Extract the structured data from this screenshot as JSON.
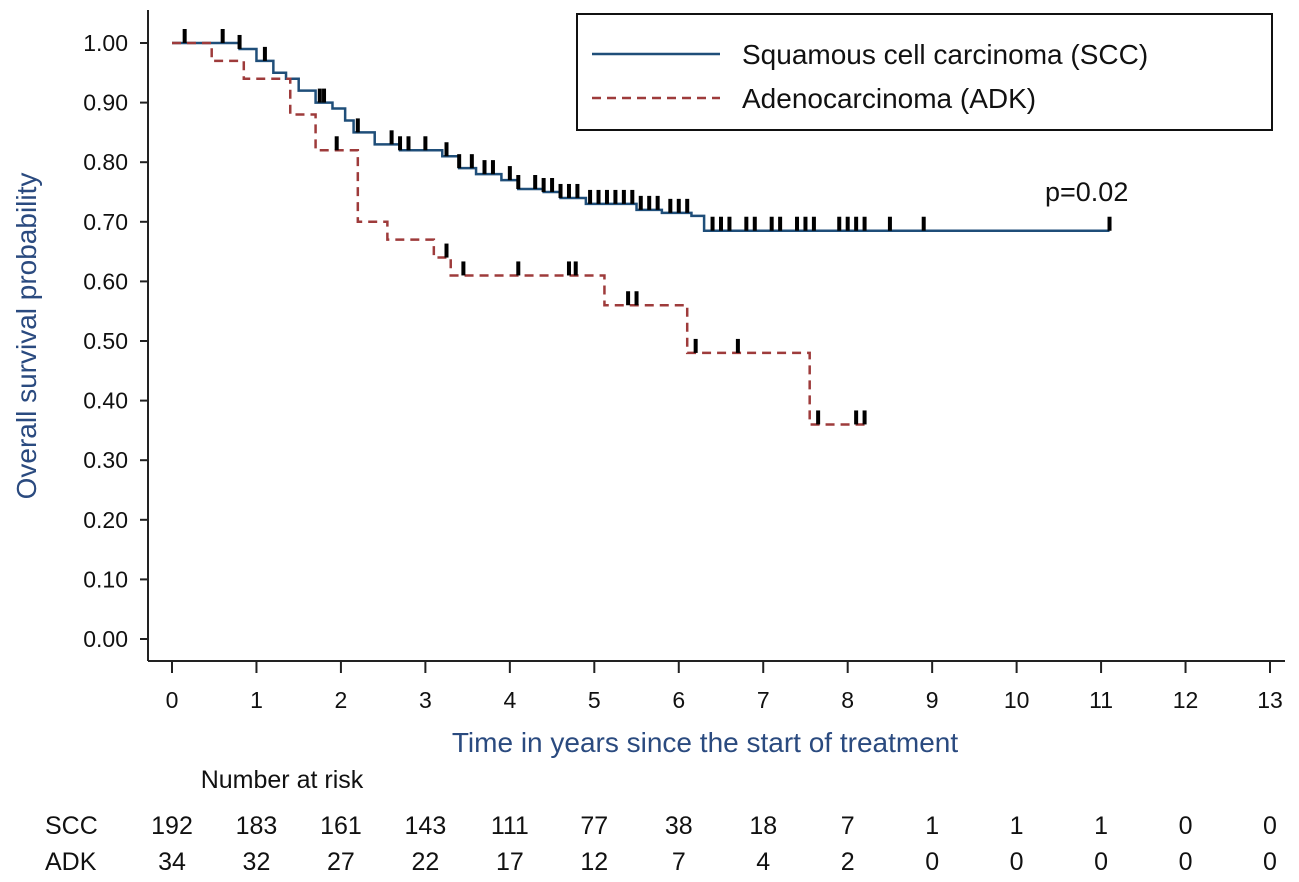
{
  "chart_data": {
    "type": "line",
    "subtype": "kaplan-meier",
    "xlabel": "Time in years since the start of treatment",
    "ylabel": "Overall survival probability",
    "xlim": [
      0,
      13
    ],
    "ylim": [
      0,
      1
    ],
    "x_ticks": [
      "0",
      "1",
      "2",
      "3",
      "4",
      "5",
      "6",
      "7",
      "8",
      "9",
      "10",
      "11",
      "12",
      "13"
    ],
    "y_ticks": [
      "0.00",
      "0.10",
      "0.20",
      "0.30",
      "0.40",
      "0.50",
      "0.60",
      "0.70",
      "0.80",
      "0.90",
      "1.00"
    ],
    "grid": false,
    "legend_position": "top-right",
    "annotation": "p=0.02",
    "colors": {
      "SCC": "#1f4e79",
      "ADK": "#9e3b3b"
    },
    "series": [
      {
        "name": "Squamous cell carcinoma (SCC)",
        "style": "solid",
        "steps": [
          [
            0,
            1.0
          ],
          [
            0.8,
            0.99
          ],
          [
            1.0,
            0.97
          ],
          [
            1.2,
            0.95
          ],
          [
            1.35,
            0.94
          ],
          [
            1.5,
            0.92
          ],
          [
            1.7,
            0.9
          ],
          [
            1.9,
            0.89
          ],
          [
            2.05,
            0.87
          ],
          [
            2.15,
            0.85
          ],
          [
            2.4,
            0.83
          ],
          [
            2.7,
            0.82
          ],
          [
            3.0,
            0.82
          ],
          [
            3.2,
            0.81
          ],
          [
            3.4,
            0.79
          ],
          [
            3.6,
            0.78
          ],
          [
            3.9,
            0.77
          ],
          [
            4.1,
            0.755
          ],
          [
            4.4,
            0.75
          ],
          [
            4.6,
            0.74
          ],
          [
            4.9,
            0.73
          ],
          [
            5.3,
            0.73
          ],
          [
            5.5,
            0.72
          ],
          [
            5.8,
            0.715
          ],
          [
            6.15,
            0.71
          ],
          [
            6.3,
            0.685
          ],
          [
            11.1,
            0.685
          ]
        ],
        "censored": [
          0.15,
          0.6,
          0.8,
          1.1,
          1.75,
          1.8,
          2.2,
          2.6,
          2.7,
          2.8,
          3.0,
          3.25,
          3.4,
          3.55,
          3.7,
          3.8,
          4.0,
          4.1,
          4.3,
          4.4,
          4.5,
          4.6,
          4.7,
          4.8,
          4.95,
          5.05,
          5.15,
          5.25,
          5.35,
          5.45,
          5.55,
          5.65,
          5.75,
          5.9,
          6.0,
          6.1,
          6.4,
          6.5,
          6.6,
          6.8,
          6.9,
          7.1,
          7.2,
          7.4,
          7.5,
          7.6,
          7.9,
          8.0,
          8.1,
          8.2,
          8.5,
          8.9,
          11.1
        ]
      },
      {
        "name": "Adenocarcinoma (ADK)",
        "style": "dashed",
        "steps": [
          [
            0,
            1.0
          ],
          [
            0.47,
            0.97
          ],
          [
            0.85,
            0.94
          ],
          [
            1.4,
            0.88
          ],
          [
            1.7,
            0.82
          ],
          [
            2.2,
            0.7
          ],
          [
            2.55,
            0.67
          ],
          [
            3.1,
            0.64
          ],
          [
            3.3,
            0.61
          ],
          [
            5.12,
            0.56
          ],
          [
            6.1,
            0.48
          ],
          [
            7.55,
            0.36
          ],
          [
            8.2,
            0.36
          ]
        ],
        "censored": [
          1.95,
          3.25,
          3.45,
          4.1,
          4.7,
          4.78,
          5.4,
          5.5,
          6.2,
          6.7,
          7.65,
          8.1,
          8.2
        ]
      }
    ],
    "risk_table": {
      "title": "Number at risk",
      "rows": [
        {
          "label": "SCC",
          "values": [
            "192",
            "183",
            "161",
            "143",
            "111",
            "77",
            "38",
            "18",
            "7",
            "1",
            "1",
            "1",
            "0",
            "0"
          ]
        },
        {
          "label": "ADK",
          "values": [
            "34",
            "32",
            "27",
            "22",
            "17",
            "12",
            "7",
            "4",
            "2",
            "0",
            "0",
            "0",
            "0",
            "0"
          ]
        }
      ]
    }
  }
}
